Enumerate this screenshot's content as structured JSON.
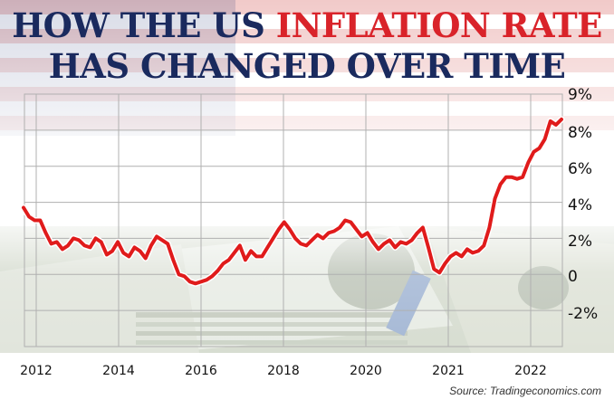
{
  "headline": {
    "line1": [
      {
        "text": "HOW THE US ",
        "color": "navy"
      },
      {
        "text": "INFLATION RATE",
        "color": "red"
      }
    ],
    "line2": [
      {
        "text": "HAS CHANGED OVER TIME",
        "color": "navy"
      }
    ]
  },
  "source": "Source: Tradingeconomics.com",
  "colors": {
    "line": "#e01b1b",
    "navy": "#1a2a5e",
    "red": "#d9232a",
    "grid": "#b0b0b0"
  },
  "chart_data": {
    "type": "line",
    "title": "HOW THE US INFLATION RATE HAS CHANGED OVER TIME",
    "x_tick_labels": [
      "2012",
      "2014",
      "2016",
      "2018",
      "2020",
      "2021",
      "2022"
    ],
    "y_tick_labels": [
      "9%",
      "8%",
      "6%",
      "4%",
      "2%",
      "0",
      "-2%"
    ],
    "y_tick_values": [
      9,
      8,
      6,
      4,
      2,
      0,
      -2
    ],
    "ylim": [
      -4,
      10
    ],
    "grid": true,
    "legend": "none",
    "series": [
      {
        "values": [
          3.7,
          3.2,
          3.0,
          3.0,
          2.3,
          1.7,
          1.8,
          1.4,
          1.6,
          2.0,
          1.9,
          1.6,
          1.5,
          2.0,
          1.8,
          1.1,
          1.3,
          1.8,
          1.2,
          1.0,
          1.5,
          1.3,
          0.9,
          1.6,
          2.1,
          1.9,
          1.7,
          0.8,
          0.0,
          -0.1,
          -0.4,
          -0.5,
          -0.4,
          -0.3,
          -0.1,
          0.2,
          0.6,
          0.8,
          1.2,
          1.6,
          0.8,
          1.3,
          1.0,
          1.0,
          1.5,
          2.0,
          2.5,
          2.9,
          2.5,
          2.0,
          1.7,
          1.6,
          1.9,
          2.2,
          2.0,
          2.3,
          2.4,
          2.6,
          3.0,
          2.9,
          2.5,
          2.1,
          2.3,
          1.8,
          1.4,
          1.7,
          1.9,
          1.5,
          1.8,
          1.7,
          1.9,
          2.3,
          2.6,
          1.5,
          0.3,
          0.1,
          0.6,
          1.0,
          1.2,
          1.0,
          1.4,
          1.2,
          1.3,
          1.6,
          2.6,
          4.2,
          5.0,
          5.4,
          5.4,
          5.3,
          5.4,
          6.2,
          6.8,
          7.0,
          7.5,
          8.5,
          8.3,
          8.6
        ]
      }
    ]
  }
}
